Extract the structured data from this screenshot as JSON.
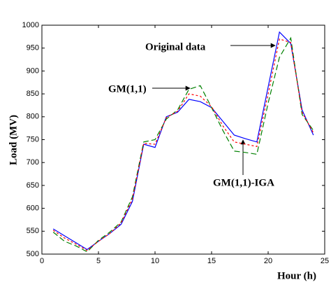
{
  "chart_data": {
    "type": "line",
    "x_label": "Hour (h)",
    "y_label": "Load (MV)",
    "x": [
      1,
      2,
      3,
      4,
      5,
      6,
      7,
      8,
      9,
      10,
      11,
      12,
      13,
      14,
      15,
      16,
      17,
      18,
      19,
      20,
      21,
      22,
      23,
      24
    ],
    "series": [
      {
        "name": "Original data",
        "color": "#0000ff",
        "dash": "none",
        "values": [
          555,
          540,
          525,
          510,
          528,
          545,
          565,
          615,
          740,
          733,
          800,
          810,
          838,
          833,
          820,
          790,
          760,
          752,
          745,
          865,
          985,
          960,
          815,
          760
        ]
      },
      {
        "name": "GM(1,1)",
        "color": "#008000",
        "dash": "8,4",
        "values": [
          548,
          528,
          518,
          505,
          530,
          548,
          570,
          625,
          745,
          750,
          795,
          815,
          860,
          868,
          820,
          770,
          725,
          722,
          718,
          830,
          930,
          972,
          805,
          770
        ]
      },
      {
        "name": "GM(1,1)-IGA",
        "color": "#ff0000",
        "dash": "3,3",
        "values": [
          552,
          535,
          522,
          508,
          528,
          545,
          568,
          620,
          742,
          740,
          798,
          812,
          850,
          845,
          822,
          780,
          745,
          740,
          735,
          850,
          970,
          962,
          810,
          765
        ]
      }
    ],
    "xlim": [
      0,
      25
    ],
    "xticks": [
      0,
      5,
      10,
      15,
      20,
      25
    ],
    "ylim": [
      500,
      1000
    ],
    "yticks": [
      500,
      550,
      600,
      650,
      700,
      750,
      800,
      850,
      900,
      950,
      1000
    ]
  }
}
